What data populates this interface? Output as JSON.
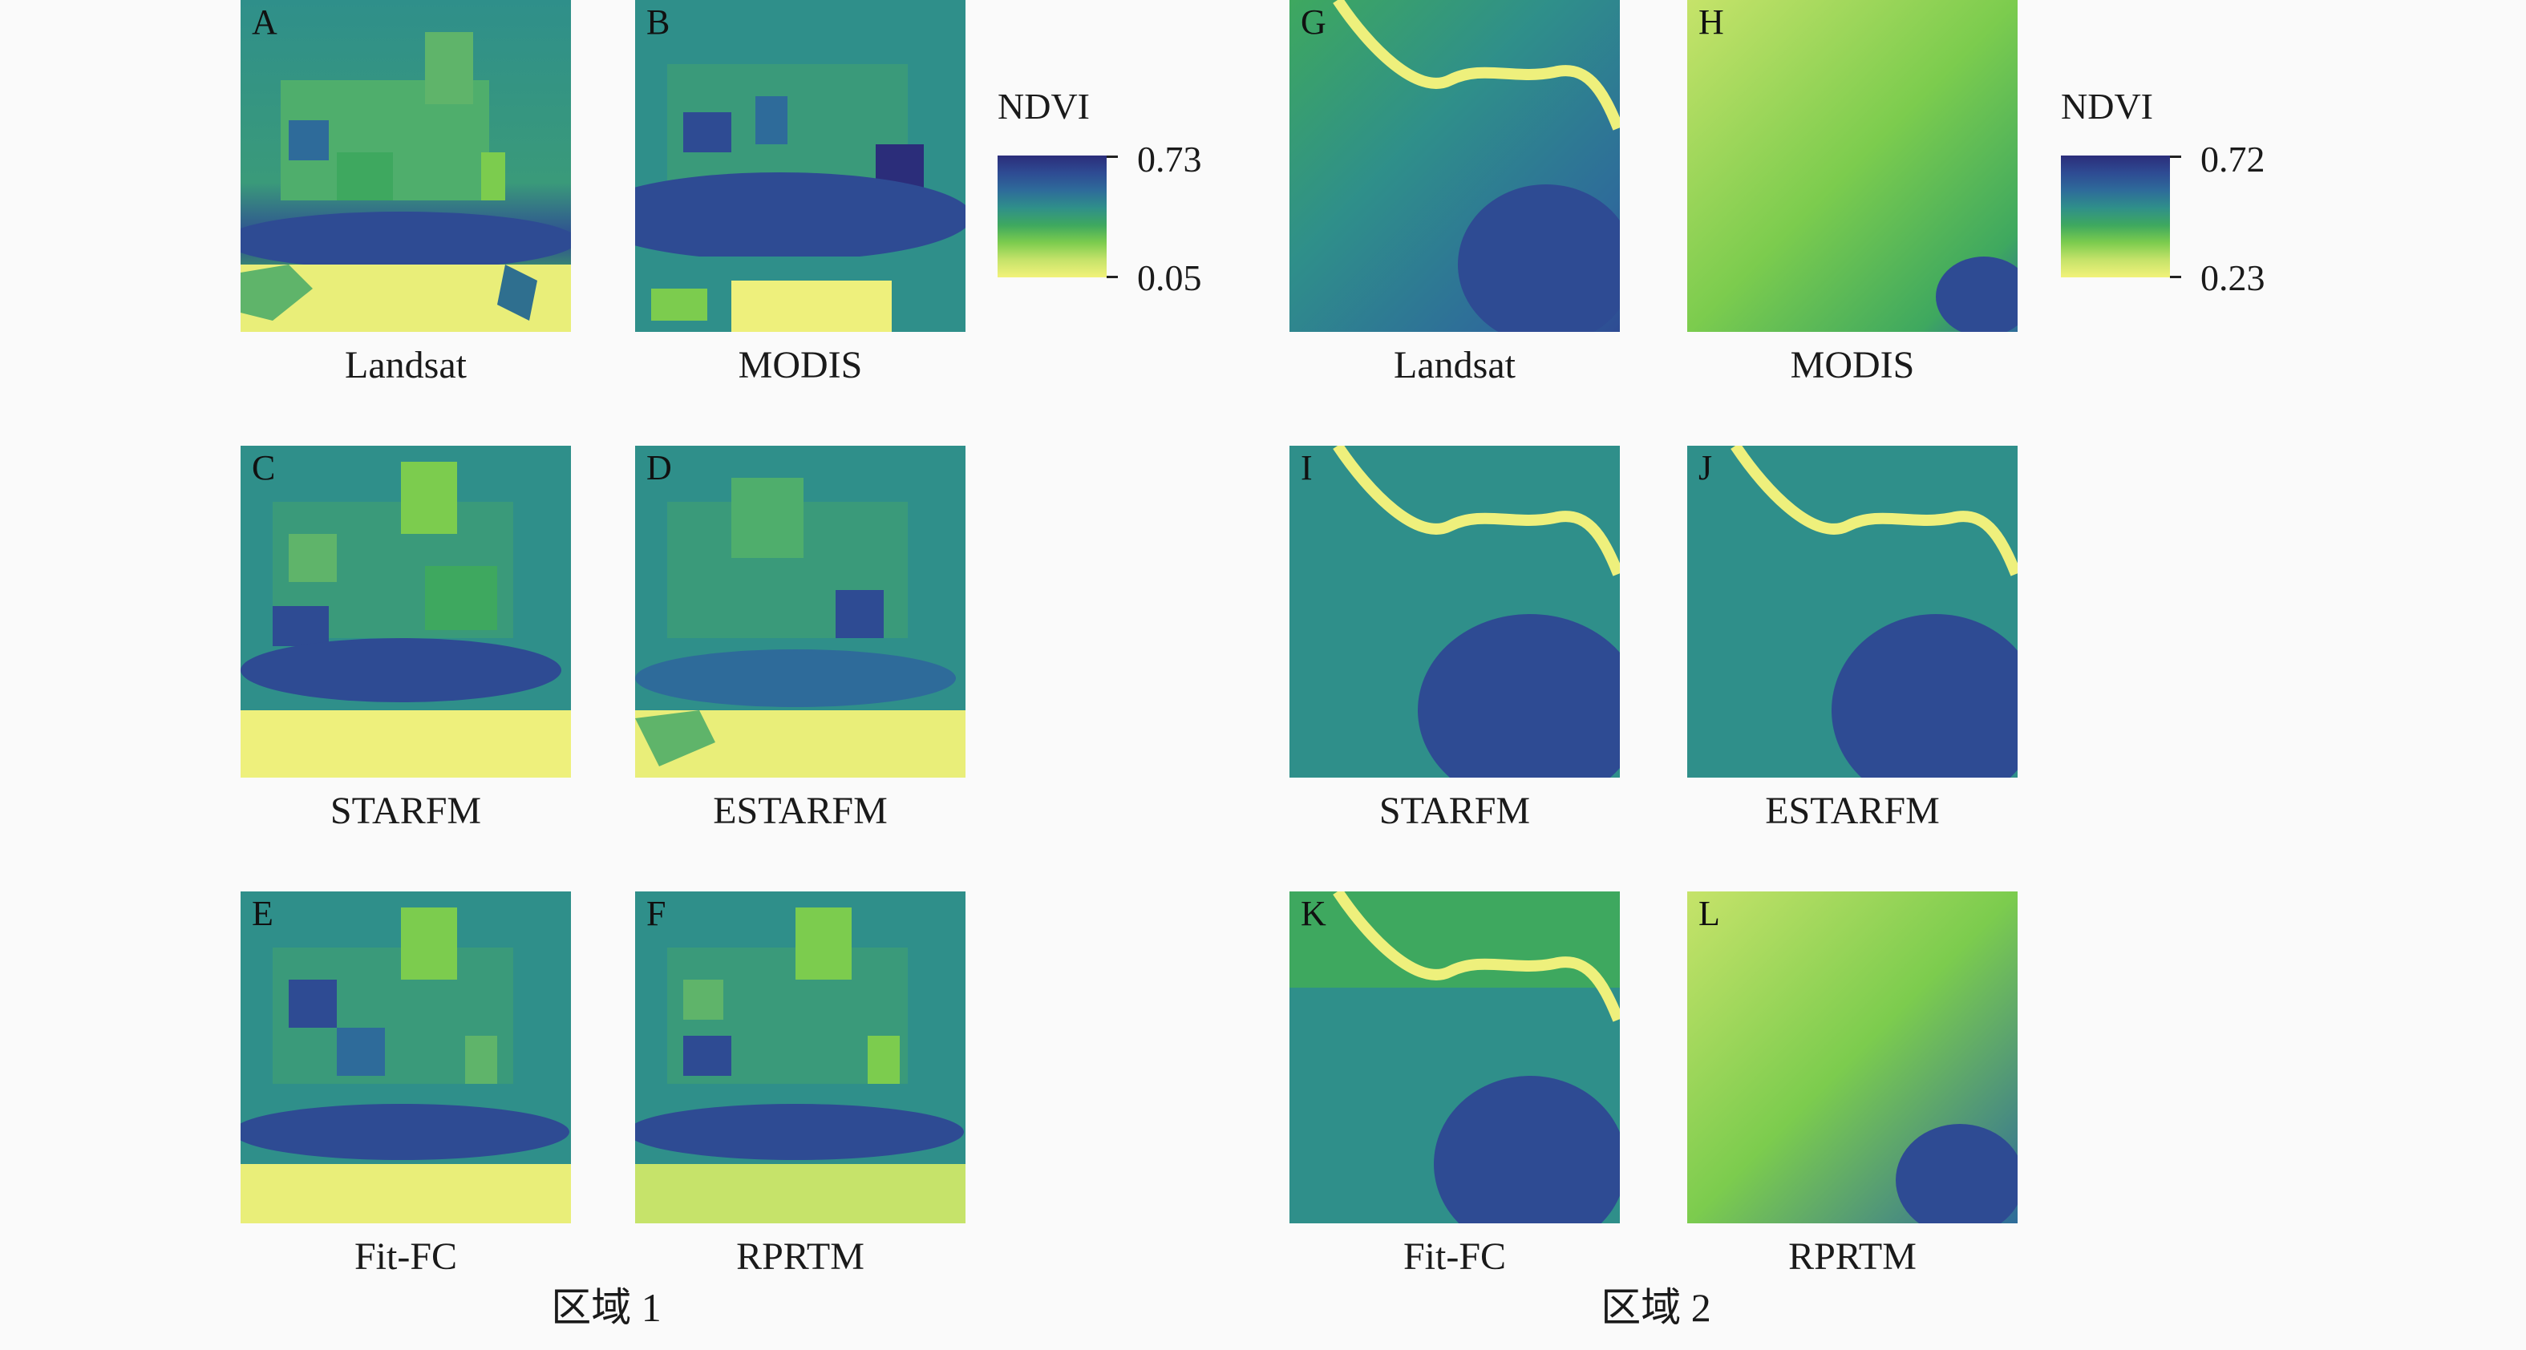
{
  "colors": {
    "ramp": [
      "#f2f27a",
      "#c6e36a",
      "#7ccc4e",
      "#3ea85f",
      "#2f8f8a",
      "#2e6b9a",
      "#2e4b93",
      "#2b2d7a"
    ],
    "background": "#fafafa"
  },
  "region1": {
    "title": "区域 1",
    "colorbar": {
      "title": "NDVI",
      "max": "0.73",
      "min": "0.05"
    },
    "panels": [
      {
        "letter": "A",
        "caption": "Landsat"
      },
      {
        "letter": "B",
        "caption": "MODIS"
      },
      {
        "letter": "C",
        "caption": "STARFM"
      },
      {
        "letter": "D",
        "caption": "ESTARFM"
      },
      {
        "letter": "E",
        "caption": "Fit-FC"
      },
      {
        "letter": "F",
        "caption": "RPRTM"
      }
    ]
  },
  "region2": {
    "title": "区域 2",
    "colorbar": {
      "title": "NDVI",
      "max": "0.72",
      "min": "0.23"
    },
    "panels": [
      {
        "letter": "G",
        "caption": "Landsat"
      },
      {
        "letter": "H",
        "caption": "MODIS"
      },
      {
        "letter": "I",
        "caption": "STARFM"
      },
      {
        "letter": "J",
        "caption": "ESTARFM"
      },
      {
        "letter": "K",
        "caption": "Fit-FC"
      },
      {
        "letter": "L",
        "caption": "RPRTM"
      }
    ]
  }
}
